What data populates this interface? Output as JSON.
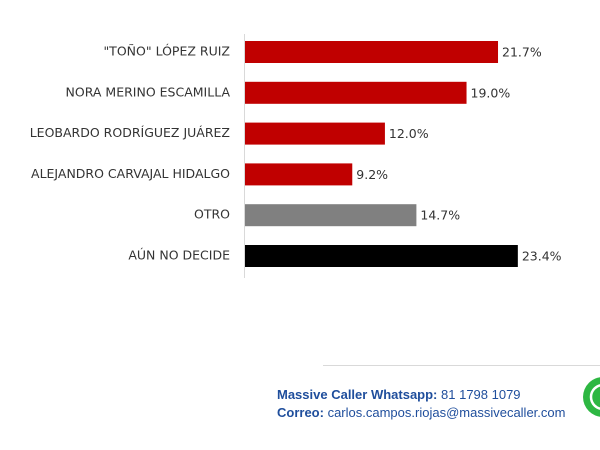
{
  "chart_data": {
    "type": "hbar",
    "categories": [
      "\"TOÑO\" LÓPEZ RUIZ",
      "NORA MERINO ESCAMILLA",
      "LEOBARDO RODRÍGUEZ JUÁREZ",
      "ALEJANDRO CARVAJAL HIDALGO",
      "OTRO",
      "AÚN NO DECIDE"
    ],
    "values": [
      21.7,
      19.0,
      12.0,
      9.2,
      14.7,
      23.4
    ],
    "value_labels": [
      "21.7%",
      "19.0%",
      "12.0%",
      "9.2%",
      "14.7%",
      "23.4%"
    ],
    "colors": [
      "#c00000",
      "#c00000",
      "#c00000",
      "#c00000",
      "#808080",
      "#000000"
    ]
  },
  "footer": {
    "whatsapp_label": "Massive Caller Whatsapp:",
    "whatsapp_number": "81 1798 1079",
    "email_label": "Correo:",
    "email": "carlos.campos.riojas@massivecaller.com"
  }
}
